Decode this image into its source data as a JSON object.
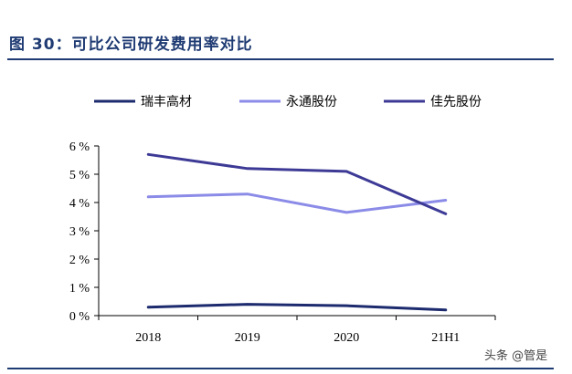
{
  "figure": {
    "title": "图 30：可比公司研发费用率对比"
  },
  "watermark": "头条 @管是",
  "colors": {
    "瑞丰高材": "#1c2a6e",
    "永通股份": "#8b8be8",
    "佳先股份": "#3d3a96",
    "title": "#1f3b73"
  },
  "chart_data": {
    "type": "line",
    "categories": [
      "2018",
      "2019",
      "2020",
      "21H1"
    ],
    "y_tick_labels": [
      "0 %",
      "1 %",
      "2 %",
      "3 %",
      "4 %",
      "5 %",
      "6 %"
    ],
    "ylim": [
      0,
      6
    ],
    "grid": false,
    "legend_position": "top",
    "series": [
      {
        "name": "瑞丰高材",
        "values": [
          0.3,
          0.4,
          0.35,
          0.2
        ]
      },
      {
        "name": "永通股份",
        "values": [
          4.2,
          4.3,
          3.65,
          4.08
        ]
      },
      {
        "name": "佳先股份",
        "values": [
          5.7,
          5.2,
          5.1,
          3.6
        ]
      }
    ]
  }
}
